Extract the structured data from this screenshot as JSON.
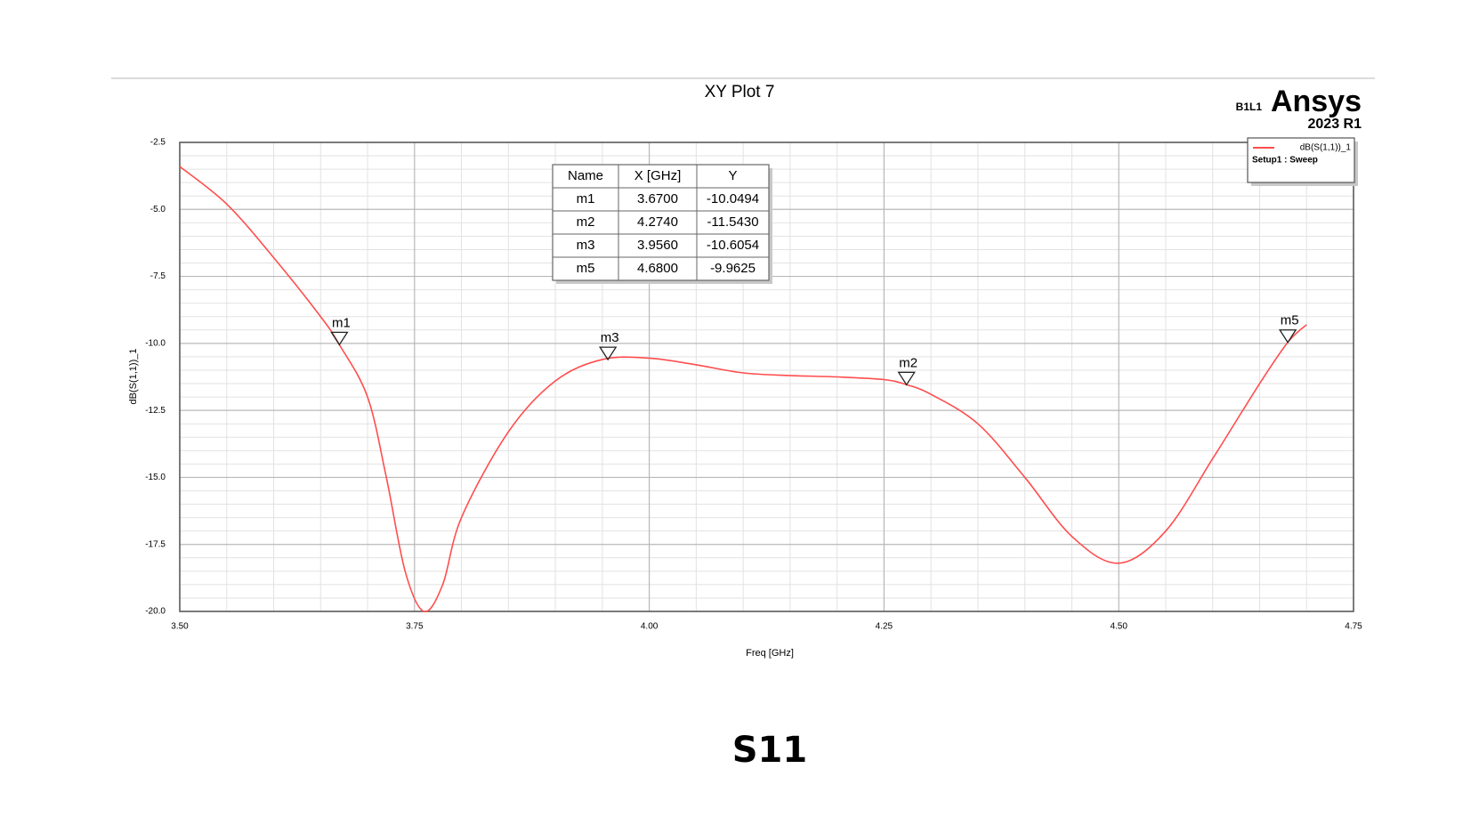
{
  "chart_data": {
    "type": "line",
    "title": "XY Plot 7",
    "xlabel": "Freq [GHz]",
    "ylabel": "dB(S(1,1))_1",
    "xlim": [
      3.5,
      4.75
    ],
    "ylim": [
      -20,
      -2.5
    ],
    "xticks": [
      {
        "value": 3.5,
        "label": "3.50"
      },
      {
        "value": 3.75,
        "label": "3.75"
      },
      {
        "value": 4,
        "label": "4.00"
      },
      {
        "value": 4.25,
        "label": "4.25"
      },
      {
        "value": 4.5,
        "label": "4.50"
      },
      {
        "value": 4.75,
        "label": "4.75"
      }
    ],
    "yticks": [
      -2.5,
      {
        "value": -5,
        "label": "-5.0"
      },
      -7.5,
      {
        "value": -10,
        "label": "-10.0"
      },
      -12.5,
      {
        "value": -15,
        "label": "-15.0"
      },
      -17.5,
      {
        "value": -20,
        "label": "-20.0"
      }
    ],
    "x_minor_ticks": [
      3.55,
      3.6,
      3.65,
      3.7,
      3.8,
      3.85,
      3.9,
      3.95,
      4.05,
      4.1,
      4.15,
      4.2,
      4.3,
      4.35,
      4.4,
      4.45,
      4.55,
      4.6,
      4.65,
      4.7
    ],
    "y_minor_ticks": [
      -3,
      -3.5,
      -4,
      -4.5,
      -5.5,
      -6,
      -6.5,
      -7,
      -8,
      -8.5,
      -9,
      -9.5,
      -10.5,
      -11,
      -11.5,
      -12,
      -13,
      -13.5,
      -14,
      -14.5,
      -15.5,
      -16,
      -16.5,
      -17,
      -18,
      -18.5,
      -19,
      -19.5
    ],
    "grid": true,
    "legend": "upper right",
    "legend_subtitle": "Setup1 : Sweep",
    "series": [
      {
        "name": "dB(S(1,1))_1",
        "color": "#ff4d4d",
        "x": [
          3.5,
          3.55,
          3.6,
          3.65,
          3.67,
          3.7,
          3.72,
          3.74,
          3.76,
          3.78,
          3.8,
          3.85,
          3.9,
          3.95,
          4.0,
          4.05,
          4.1,
          4.15,
          4.2,
          4.25,
          4.274,
          4.3,
          4.35,
          4.4,
          4.45,
          4.5,
          4.55,
          4.6,
          4.65,
          4.68,
          4.7
        ],
        "values": [
          -3.4,
          -4.8,
          -6.8,
          -9.0,
          -10.05,
          -12.0,
          -15.0,
          -18.5,
          -20.0,
          -19.0,
          -16.5,
          -13.3,
          -11.4,
          -10.6,
          -10.55,
          -10.8,
          -11.1,
          -11.2,
          -11.25,
          -11.35,
          -11.54,
          -11.9,
          -13.0,
          -15.0,
          -17.2,
          -18.2,
          -17.0,
          -14.3,
          -11.5,
          -9.96,
          -9.3
        ]
      }
    ],
    "marker_table_header": [
      "Name",
      "X [GHz]",
      "Y"
    ],
    "markers": [
      {
        "name": "m1",
        "x": 3.67,
        "y": -10.0494,
        "x_label": "3.6700",
        "y_label": "-10.0494"
      },
      {
        "name": "m2",
        "x": 4.274,
        "y": -11.543,
        "x_label": "4.2740",
        "y_label": "-11.5430"
      },
      {
        "name": "m3",
        "x": 3.956,
        "y": -10.6054,
        "x_label": "3.9560",
        "y_label": "-10.6054"
      },
      {
        "name": "m5",
        "x": 4.68,
        "y": -9.9625,
        "x_label": "4.6800",
        "y_label": "-9.9625"
      }
    ],
    "watermark": {
      "code": "B1L1",
      "product": "Ansys",
      "version": "2023 R1"
    }
  },
  "caption": "S11"
}
